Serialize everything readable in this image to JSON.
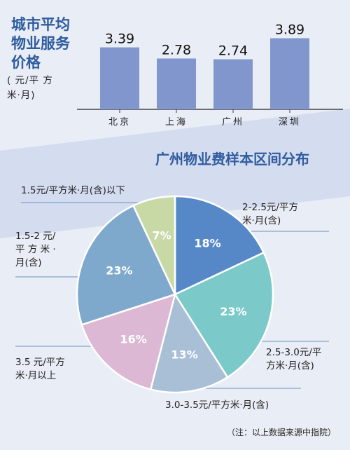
{
  "colors": {
    "title": "#2e5c9e",
    "bar": "#8096cc",
    "band": "#d4dcef",
    "pie": [
      "#5688c8",
      "#7cc9c9",
      "#a9bfd6",
      "#dcb8d4",
      "#7fa9cc",
      "#c9d9a6"
    ]
  },
  "chart_data": [
    {
      "type": "bar",
      "title": "城市平均\n物业服务\n价格",
      "ylabel": "( 元/平 方\n米·月)",
      "categories": [
        "北京",
        "上海",
        "广州",
        "深圳"
      ],
      "values": [
        3.39,
        2.78,
        2.74,
        3.89
      ],
      "value_labels": [
        "3.39",
        "2.78",
        "2.74",
        "3.89"
      ],
      "ylim": [
        0,
        4.6
      ],
      "grid": false
    },
    {
      "type": "pie",
      "title": "广州物业费样本区间分布",
      "slices": [
        {
          "label": "2-2.5元/平方\n米·月(含)",
          "value": 18,
          "pct_label": "18%"
        },
        {
          "label": "2.5-3.0元/平\n方米·月(含)",
          "value": 23,
          "pct_label": "23%"
        },
        {
          "label": "3.0-3.5元/平方米·月(含)",
          "value": 13,
          "pct_label": "13%"
        },
        {
          "label": "3.5 元/平方\n米·月以上",
          "value": 16,
          "pct_label": "16%"
        },
        {
          "label": "1.5-2 元/\n平 方 米 ·\n月(含)",
          "value": 23,
          "pct_label": "23%"
        },
        {
          "label": "1.5元/平方米·月(含)以下",
          "value": 7,
          "pct_label": "7%"
        }
      ]
    }
  ],
  "note": "（注：以上数据来源中指院）"
}
